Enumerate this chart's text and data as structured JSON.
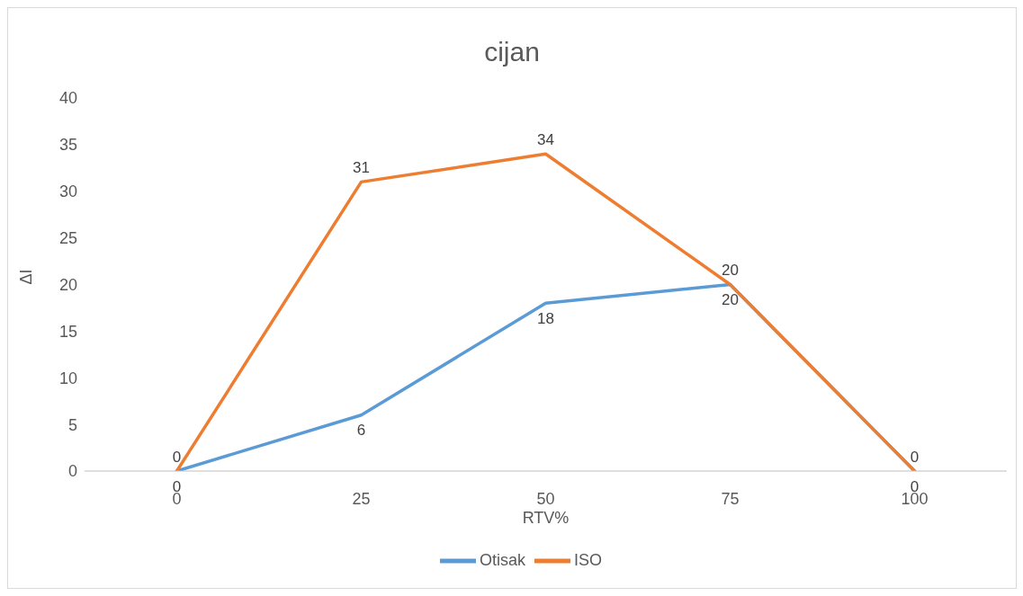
{
  "chart_data": {
    "type": "line",
    "title": "cijan",
    "xlabel": "RTV%",
    "ylabel": "ΔI",
    "categories": [
      "0",
      "25",
      "50",
      "75",
      "100"
    ],
    "series": [
      {
        "name": "Otisak",
        "color": "#5b9bd5",
        "values": [
          0,
          6,
          18,
          20,
          0
        ]
      },
      {
        "name": "ISO",
        "color": "#ed7d31",
        "values": [
          0,
          31,
          34,
          20,
          0
        ]
      }
    ],
    "ylim": [
      0,
      40
    ],
    "yticks": [
      0,
      5,
      10,
      15,
      20,
      25,
      30,
      35,
      40
    ],
    "grid": false,
    "legend": "bottom",
    "marker": "none",
    "line_style": "solid",
    "data_labels": true
  }
}
